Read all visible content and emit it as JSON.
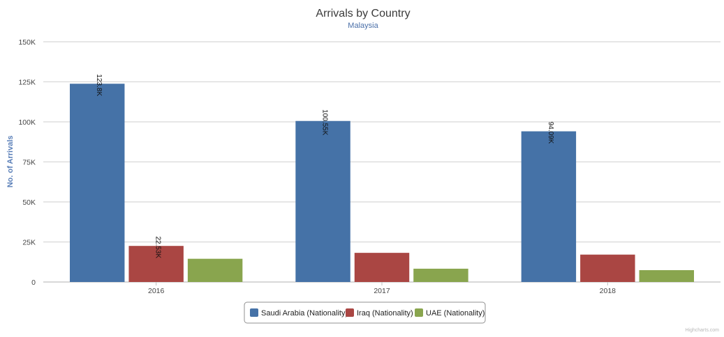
{
  "chart_data": {
    "type": "bar",
    "title": "Arrivals by Country",
    "subtitle": "Malaysia",
    "xlabel": "",
    "ylabel": "No. of Arrivals",
    "categories": [
      "2016",
      "2017",
      "2018"
    ],
    "ylim": [
      0,
      150000
    ],
    "yticks": [
      {
        "value": 0,
        "label": "0"
      },
      {
        "value": 25000,
        "label": "25K"
      },
      {
        "value": 50000,
        "label": "50K"
      },
      {
        "value": 75000,
        "label": "75K"
      },
      {
        "value": 100000,
        "label": "100K"
      },
      {
        "value": 125000,
        "label": "125K"
      },
      {
        "value": 150000,
        "label": "150K"
      }
    ],
    "grid": true,
    "legend_position": "bottom-center",
    "series": [
      {
        "name": "Saudi Arabia (Nationality)",
        "color": "#4572a7",
        "values": [
          123800,
          100550,
          94090
        ],
        "labels": [
          "123.8K",
          "100.55K",
          "94.09K"
        ]
      },
      {
        "name": "Iraq (Nationality)",
        "color": "#aa4643",
        "values": [
          22530,
          18200,
          17100
        ],
        "labels": [
          "22.53K",
          null,
          null
        ]
      },
      {
        "name": "UAE (Nationality)",
        "color": "#89a54e",
        "values": [
          14500,
          8300,
          7400
        ],
        "labels": [
          null,
          null,
          null
        ]
      }
    ],
    "credits": "Highcharts.com"
  }
}
